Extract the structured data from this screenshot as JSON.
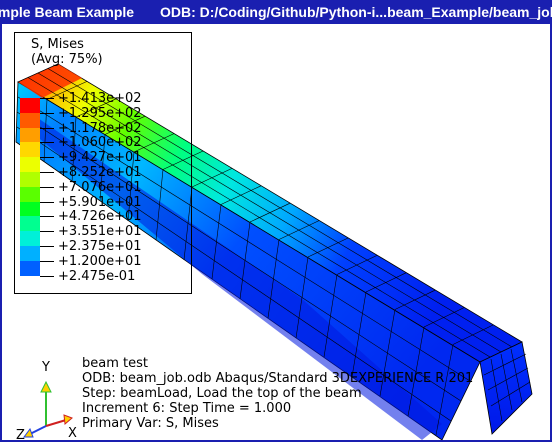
{
  "window": {
    "title_left": "imple Beam Example",
    "title_right": "ODB: D:/Coding/Github/Python-i...beam_Example/beam_job.odb"
  },
  "legend": {
    "title_line1": "S, Mises",
    "title_line2": "(Avg: 75%)",
    "levels": [
      {
        "label": "+1.413e+02",
        "color": "#ff0000"
      },
      {
        "label": "+1.295e+02",
        "color": "#ff5a00"
      },
      {
        "label": "+1.178e+02",
        "color": "#ff9e00"
      },
      {
        "label": "+1.060e+02",
        "color": "#ffd800"
      },
      {
        "label": "+9.427e+01",
        "color": "#ecff00"
      },
      {
        "label": "+8.252e+01",
        "color": "#b0ff00"
      },
      {
        "label": "+7.076e+01",
        "color": "#5aff00"
      },
      {
        "label": "+5.901e+01",
        "color": "#00ff20"
      },
      {
        "label": "+4.726e+01",
        "color": "#00ff90"
      },
      {
        "label": "+3.551e+01",
        "color": "#00f0d8"
      },
      {
        "label": "+2.375e+01",
        "color": "#00b0ff"
      },
      {
        "label": "+1.200e+01",
        "color": "#0060ff"
      },
      {
        "label": "+2.475e-01",
        "color": ""
      }
    ]
  },
  "info": {
    "line1": "beam test",
    "line2": "ODB: beam_job.odb    Abaqus/Standard 3DEXPERIENCE R 201",
    "line3": "Step: beamLoad, Load the top of the beam",
    "line4": "Increment      6: Step Time =    1.000",
    "line5": "Primary Var: S, Mises"
  },
  "triad": {
    "x_label": "X",
    "y_label": "Y",
    "z_label": "Z"
  },
  "colors": {
    "title_bg": "#1a1fb0",
    "beam_blue": "#0020ff",
    "beam_cyan": "#00e0e0",
    "beam_green": "#40ff00",
    "beam_yellow": "#ffe000",
    "beam_red": "#ff2000"
  }
}
